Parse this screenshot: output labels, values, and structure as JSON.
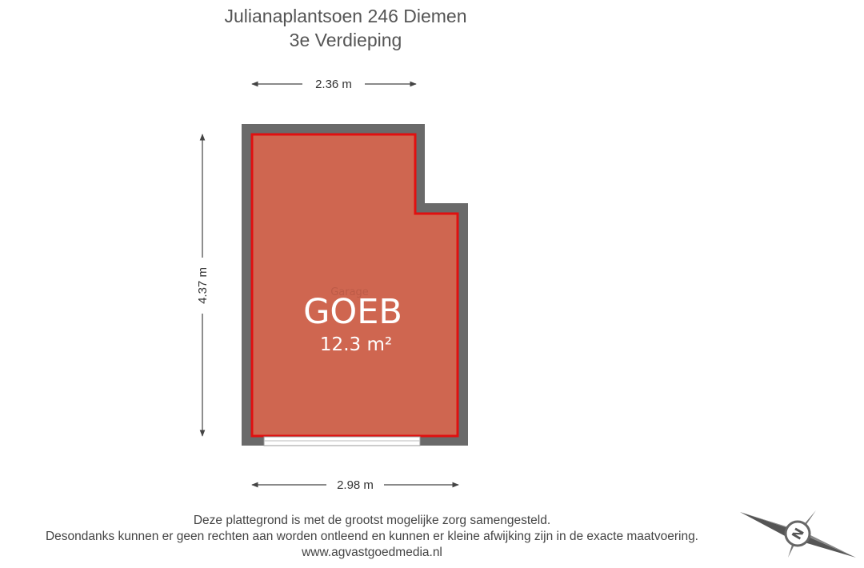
{
  "header": {
    "title": "Julianaplantsoen 246 Diemen",
    "subtitle": "3e Verdieping"
  },
  "dimensions": {
    "top": "2.36 m",
    "left": "4.37 m",
    "bottom": "2.98 m"
  },
  "room": {
    "original_label": "Garage",
    "name": "GOEB",
    "area": "12.3 m²"
  },
  "compass": {
    "label": "N"
  },
  "disclaimer": [
    "Deze plattegrond is met de grootst mogelijke zorg samengesteld.",
    "Desondanks kunnen er geen rechten aan worden ontleend en kunnen er kleine afwijking zijn in de exacte maatvoering.",
    "www.agvastgoedmedia.nl"
  ]
}
